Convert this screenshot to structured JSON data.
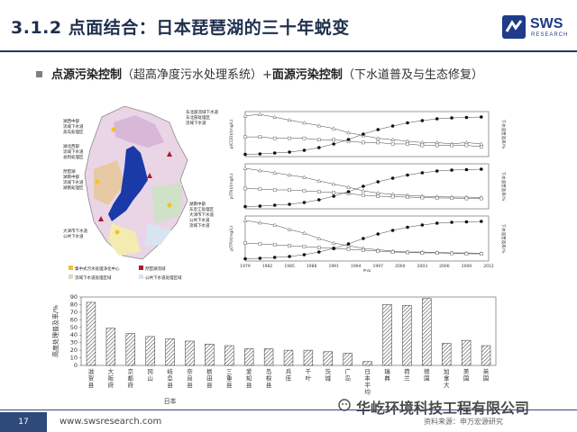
{
  "header": {
    "title": "3.1.2 点面结合：日本琵琶湖的三十年蜕变",
    "logo_text": "SWS",
    "logo_sub": "RESEARCH",
    "accent_color": "#1f3864"
  },
  "bullet": {
    "part1_bold": "点源污染控制",
    "part2": "（超高净度污水处理系统）+",
    "part3_bold": "面源污染控制",
    "part4": "（下水道普及与生态修复）"
  },
  "map": {
    "labels": [
      "湖西中部",
      "流域下水道",
      "高岛处理区",
      "湖北西部",
      "流域下水道",
      "总和处理区",
      "琵琶湖",
      "湖南中部",
      "流域下水道",
      "湖南处理区",
      "大津市下水道",
      "公共下水道",
      "东北部流域下水道",
      "东北部处理区",
      "流域下水道",
      "湖南中部",
      "东近江处理区",
      "大津市下水道",
      "公共下水道",
      "流域下水道"
    ],
    "legend": [
      "集中式污水处理净化中心",
      "琵琶湖流域",
      "流域下水道处理区域",
      "公共下水道处理区域"
    ]
  },
  "line_figure": {
    "x_axis_label": "年份",
    "x_ticks": [
      "1979",
      "1982",
      "1985",
      "1988",
      "1991",
      "1994",
      "1997",
      "2000",
      "2003",
      "2006",
      "2009",
      "2012"
    ],
    "panels": [
      {
        "left_label": "ρ(COD)/(mg/L)",
        "right_label": "下水道普及率/%"
      },
      {
        "left_label": "ρ(TN)/(mg/L)",
        "right_label": "下水道普及率/%"
      },
      {
        "left_label": "ρ(TP)/(mg/L)",
        "right_label": "下水道普及率/%"
      }
    ],
    "legend": [
      "琵琶湖南湖",
      "北湖水质入湖河流",
      "下水道普及率"
    ]
  },
  "chart_data": [
    {
      "type": "line",
      "x": [
        1979,
        1981,
        1983,
        1985,
        1987,
        1989,
        1991,
        1993,
        1995,
        1997,
        1999,
        2001,
        2003,
        2005,
        2007,
        2009,
        2011
      ],
      "series": [
        {
          "name": "琵琶湖南湖",
          "values": [
            2.9,
            3.0,
            2.8,
            2.6,
            2.4,
            2.2,
            2.0,
            1.7,
            1.5,
            1.3,
            1.2,
            1.1,
            1.0,
            1.0,
            0.9,
            1.0,
            0.9
          ]
        },
        {
          "name": "北湖水质入湖河流",
          "values": [
            1.4,
            1.4,
            1.3,
            1.3,
            1.3,
            1.2,
            1.2,
            1.1,
            1.0,
            1.0,
            0.9,
            0.9,
            0.8,
            0.8,
            0.8,
            0.8,
            0.7
          ]
        },
        {
          "name": "下水道普及率",
          "values": [
            5,
            6,
            8,
            10,
            14,
            20,
            28,
            38,
            50,
            60,
            68,
            75,
            80,
            84,
            86,
            87,
            88
          ]
        }
      ],
      "ylabel": "ρ(COD)/(mg/L)"
    },
    {
      "type": "line",
      "x": [
        1979,
        1981,
        1983,
        1985,
        1987,
        1989,
        1991,
        1993,
        1995,
        1997,
        1999,
        2001,
        2003,
        2005,
        2007,
        2009,
        2011
      ],
      "series": [
        {
          "name": "琵琶湖南湖",
          "values": [
            0.9,
            0.85,
            0.8,
            0.75,
            0.7,
            0.62,
            0.55,
            0.48,
            0.4,
            0.35,
            0.32,
            0.3,
            0.28,
            0.27,
            0.26,
            0.26,
            0.25
          ]
        },
        {
          "name": "北湖水质入湖河流",
          "values": [
            0.45,
            0.44,
            0.42,
            0.42,
            0.4,
            0.38,
            0.36,
            0.34,
            0.3,
            0.28,
            0.27,
            0.26,
            0.25,
            0.24,
            0.24,
            0.23,
            0.23
          ]
        },
        {
          "name": "下水道普及率",
          "values": [
            5,
            6,
            8,
            10,
            14,
            20,
            28,
            38,
            50,
            60,
            68,
            75,
            80,
            84,
            86,
            87,
            88
          ]
        }
      ],
      "ylabel": "ρ(TN)/(mg/L)"
    },
    {
      "type": "line",
      "x": [
        1979,
        1981,
        1983,
        1985,
        1987,
        1989,
        1991,
        1993,
        1995,
        1997,
        1999,
        2001,
        2003,
        2005,
        2007,
        2009,
        2011
      ],
      "series": [
        {
          "name": "琵琶湖南湖",
          "values": [
            0.09,
            0.085,
            0.08,
            0.07,
            0.062,
            0.05,
            0.04,
            0.034,
            0.028,
            0.025,
            0.022,
            0.02,
            0.02,
            0.019,
            0.018,
            0.018,
            0.017
          ]
        },
        {
          "name": "北湖水质入湖河流",
          "values": [
            0.04,
            0.038,
            0.036,
            0.034,
            0.032,
            0.03,
            0.028,
            0.026,
            0.024,
            0.022,
            0.02,
            0.019,
            0.018,
            0.018,
            0.017,
            0.016,
            0.016
          ]
        },
        {
          "name": "下水道普及率",
          "values": [
            5,
            6,
            8,
            10,
            14,
            20,
            28,
            38,
            50,
            60,
            68,
            75,
            80,
            84,
            86,
            87,
            88
          ]
        }
      ],
      "ylabel": "ρ(TP)/(mg/L)"
    },
    {
      "type": "bar",
      "ylabel": "高度处理普及率/%",
      "ylim": [
        0,
        90
      ],
      "yticks": [
        0,
        10,
        20,
        30,
        40,
        50,
        60,
        70,
        80,
        90
      ],
      "categories": [
        "滋贺县",
        "大阪府",
        "京都府",
        "冈山",
        "岐阜县",
        "奈良县",
        "栃田县",
        "三重县",
        "爱知县",
        "岛根县",
        "兵库",
        "千叶",
        "茨城",
        "广岛",
        "日本平均",
        "瑞典",
        "荷兰",
        "德国",
        "加拿大",
        "美国",
        "英国"
      ],
      "values": [
        83,
        49,
        42,
        38,
        35,
        32,
        28,
        26,
        22,
        22,
        20,
        20,
        18,
        16,
        5,
        80,
        79,
        88,
        29,
        33,
        26
      ],
      "group_label": "日本"
    }
  ],
  "footer": {
    "page": "17",
    "url": "www.swsresearch.com",
    "right_text": "资料来源：申万宏源研究",
    "watermark": "华屹环境科技工程有限公司"
  }
}
